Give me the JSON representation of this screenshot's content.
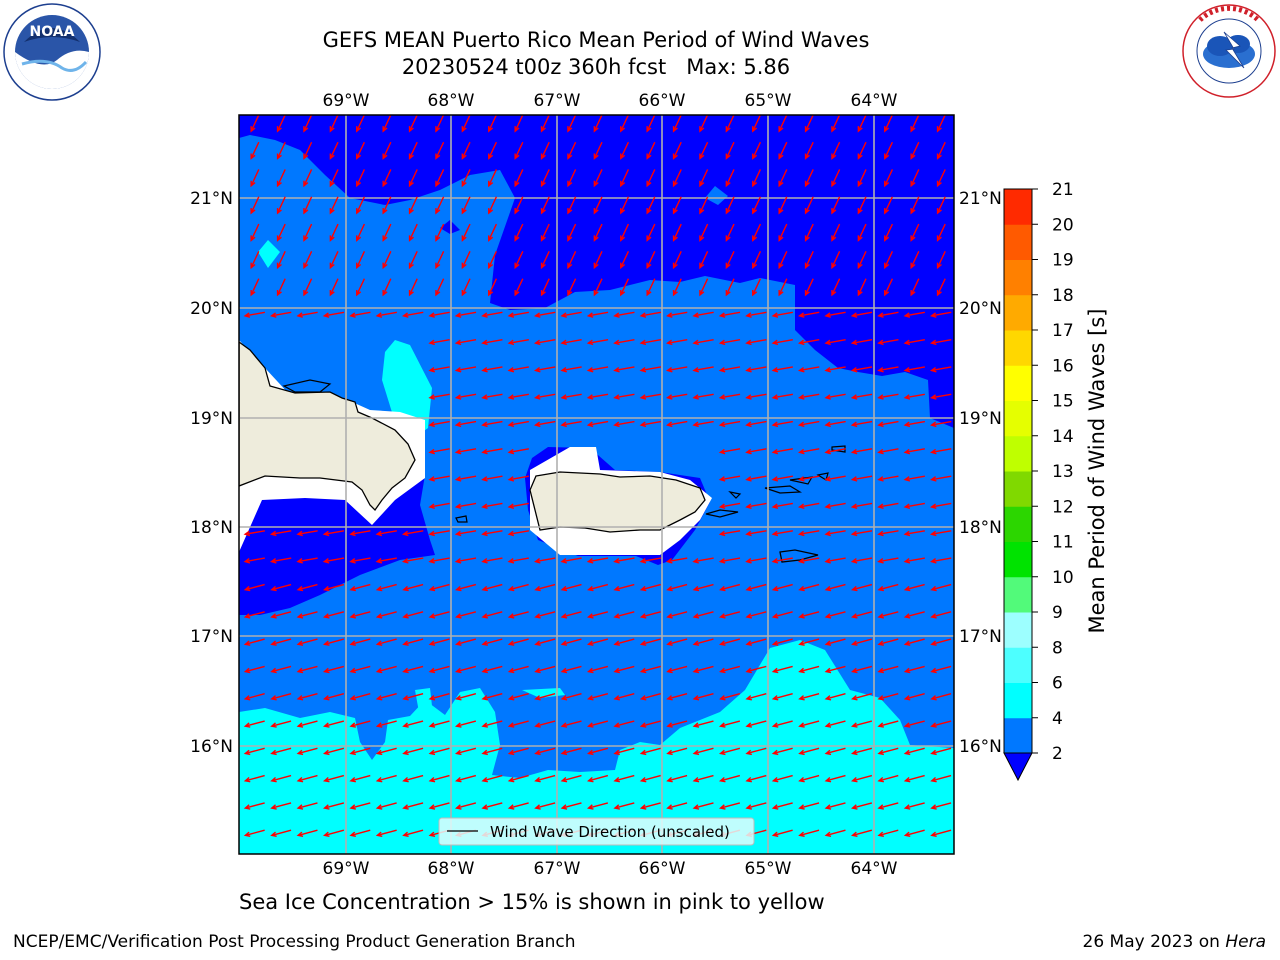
{
  "title": {
    "line1": "GEFS MEAN Puerto Rico Mean Period of Wind Waves",
    "line2": "20230524 t00z 360h fcst   Max: 5.86"
  },
  "logos": {
    "left": {
      "text": "NOAA",
      "ring_text": "NATIONAL OCEANIC AND ATMOSPHERIC ADMINISTRATION · U.S. DEPARTMENT OF COMMERCE",
      "icon": "noaa-logo"
    },
    "right": {
      "ring_text": "NATIONAL WEATHER SERVICE",
      "icon": "nws-logo"
    }
  },
  "map": {
    "lon_labels": [
      "69°W",
      "68°W",
      "67°W",
      "66°W",
      "65°W",
      "64°W"
    ],
    "lat_labels": [
      "21°N",
      "20°N",
      "19°N",
      "18°N",
      "17°N",
      "16°N"
    ],
    "legend_label": "Wind Wave Direction (unscaled)",
    "arrow_color": "#ff0000",
    "land_color": "#eeecdc"
  },
  "colorbar": {
    "label": "Mean Period of Wind Waves [s]",
    "ticks": [
      "2",
      "4",
      "6",
      "8",
      "9",
      "10",
      "11",
      "12",
      "13",
      "14",
      "15",
      "16",
      "17",
      "18",
      "19",
      "20",
      "21"
    ],
    "colors": [
      "#0078ff",
      "#00ffff",
      "#4dffff",
      "#9dffff",
      "#52fa7a",
      "#00e300",
      "#2cd600",
      "#80d900",
      "#bfff00",
      "#e5ff00",
      "#ffff00",
      "#ffd700",
      "#ffaa00",
      "#ff8000",
      "#ff5a00",
      "#ff2a00",
      "#ff0000"
    ],
    "under_color": "#0000ff"
  },
  "note": "Sea Ice Concentration > 15% is shown in pink to yellow",
  "footer": {
    "left": "NCEP/EMC/Verification Post Processing Product Generation Branch",
    "right_date": "26 May 2023 on ",
    "right_host": "Hera"
  }
}
